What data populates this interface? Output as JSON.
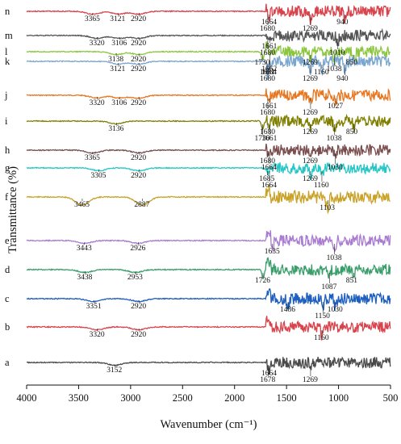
{
  "chart_data": {
    "type": "line",
    "xlabel": "Wavenumber (cm⁻¹)",
    "ylabel": "Transmittance (%)",
    "xlim": [
      4000,
      500
    ],
    "x_ticks": [
      "4000",
      "3500",
      "3000",
      "2500",
      "2000",
      "1500",
      "1000",
      "500"
    ],
    "grid": false,
    "legend": "none; curves labelled a–n at left",
    "series": [
      {
        "name": "n",
        "color": "#d9434c",
        "peaks": [
          {
            "x": 3365,
            "label": "3365"
          },
          {
            "x": 3121,
            "label": "3121"
          },
          {
            "x": 2920,
            "label": "2920"
          },
          {
            "x": 1680,
            "label": "1680"
          },
          {
            "x": 1664,
            "label": "1664"
          },
          {
            "x": 1269,
            "label": "1269"
          },
          {
            "x": 940,
            "label": "940"
          }
        ]
      },
      {
        "name": "m",
        "color": "#555555",
        "peaks": [
          {
            "x": 3320,
            "label": "3320"
          },
          {
            "x": 3106,
            "label": "3106"
          },
          {
            "x": 2920,
            "label": "2920"
          },
          {
            "x": 1680,
            "label": "1680"
          },
          {
            "x": 1661,
            "label": "1661"
          },
          {
            "x": 1010,
            "label": "1010"
          }
        ]
      },
      {
        "name": "l",
        "color": "#8cc63f",
        "peaks": [
          {
            "x": 3138,
            "label": "3138"
          },
          {
            "x": 2920,
            "label": "2920"
          },
          {
            "x": 1730,
            "label": "1730"
          },
          {
            "x": 1662,
            "label": "1662"
          },
          {
            "x": 1269,
            "label": "1269"
          },
          {
            "x": 1038,
            "label": "1038"
          },
          {
            "x": 850,
            "label": "850"
          }
        ]
      },
      {
        "name": "k",
        "color": "#7aa6cf",
        "peaks": [
          {
            "x": 3121,
            "label": "3121"
          },
          {
            "x": 2920,
            "label": "2920"
          },
          {
            "x": 1681,
            "label": "1681"
          },
          {
            "x": 1680,
            "label": "1680"
          },
          {
            "x": 1664,
            "label": "1664"
          },
          {
            "x": 1269,
            "label": "1269"
          },
          {
            "x": 1160,
            "label": "1160"
          },
          {
            "x": 940,
            "label": "940"
          }
        ]
      },
      {
        "name": "j",
        "color": "#e87722",
        "peaks": [
          {
            "x": 3320,
            "label": "3320"
          },
          {
            "x": 3106,
            "label": "3106"
          },
          {
            "x": 2920,
            "label": "2920"
          },
          {
            "x": 1680,
            "label": "1680"
          },
          {
            "x": 1661,
            "label": "1661"
          },
          {
            "x": 1269,
            "label": "1269"
          },
          {
            "x": 1027,
            "label": "1027"
          }
        ]
      },
      {
        "name": "i",
        "color": "#7f7f00",
        "peaks": [
          {
            "x": 3136,
            "label": "3136"
          },
          {
            "x": 1730,
            "label": "1730"
          },
          {
            "x": 1680,
            "label": "1680"
          },
          {
            "x": 1661,
            "label": "1661"
          },
          {
            "x": 1269,
            "label": "1269"
          },
          {
            "x": 1038,
            "label": "1038"
          },
          {
            "x": 850,
            "label": "850"
          }
        ]
      },
      {
        "name": "h",
        "color": "#7a4e4e",
        "peaks": [
          {
            "x": 3365,
            "label": "3365"
          },
          {
            "x": 2920,
            "label": "2920"
          },
          {
            "x": 1680,
            "label": "1680"
          },
          {
            "x": 1664,
            "label": "1664"
          },
          {
            "x": 1269,
            "label": "1269"
          },
          {
            "x": 1030,
            "label": "1030"
          }
        ]
      },
      {
        "name": "g",
        "color": "#26c6c6",
        "peaks": [
          {
            "x": 3305,
            "label": "3305"
          },
          {
            "x": 2920,
            "label": "2920"
          },
          {
            "x": 1685,
            "label": "1685"
          },
          {
            "x": 1664,
            "label": "1664"
          },
          {
            "x": 1269,
            "label": "1269"
          },
          {
            "x": 1160,
            "label": "1160"
          }
        ]
      },
      {
        "name": "f",
        "color": "#c9a227",
        "peaks": [
          {
            "x": 3465,
            "label": "3465"
          },
          {
            "x": 2887,
            "label": "2887"
          },
          {
            "x": 1103,
            "label": "1103"
          }
        ]
      },
      {
        "name": "e",
        "color": "#a97bd1",
        "peaks": [
          {
            "x": 3443,
            "label": "3443"
          },
          {
            "x": 2926,
            "label": "2926"
          },
          {
            "x": 1635,
            "label": "1635"
          },
          {
            "x": 1038,
            "label": "1038"
          }
        ]
      },
      {
        "name": "d",
        "color": "#3a9e6a",
        "peaks": [
          {
            "x": 3438,
            "label": "3438"
          },
          {
            "x": 2953,
            "label": "2953"
          },
          {
            "x": 1726,
            "label": "1726"
          },
          {
            "x": 1087,
            "label": "1087"
          },
          {
            "x": 851,
            "label": "851"
          }
        ]
      },
      {
        "name": "c",
        "color": "#1f5fbf",
        "peaks": [
          {
            "x": 3351,
            "label": "3351"
          },
          {
            "x": 2920,
            "label": "2920"
          },
          {
            "x": 1486,
            "label": "1486"
          },
          {
            "x": 1150,
            "label": "1150"
          },
          {
            "x": 1030,
            "label": "1030"
          }
        ]
      },
      {
        "name": "b",
        "color": "#d9434c",
        "peaks": [
          {
            "x": 3320,
            "label": "3320"
          },
          {
            "x": 2920,
            "label": "2920"
          },
          {
            "x": 1160,
            "label": "1160"
          }
        ]
      },
      {
        "name": "a",
        "color": "#4a4a4a",
        "peaks": [
          {
            "x": 3152,
            "label": "3152"
          },
          {
            "x": 1678,
            "label": "1678"
          },
          {
            "x": 1664,
            "label": "1664"
          },
          {
            "x": 1269,
            "label": "1269"
          }
        ]
      }
    ]
  }
}
